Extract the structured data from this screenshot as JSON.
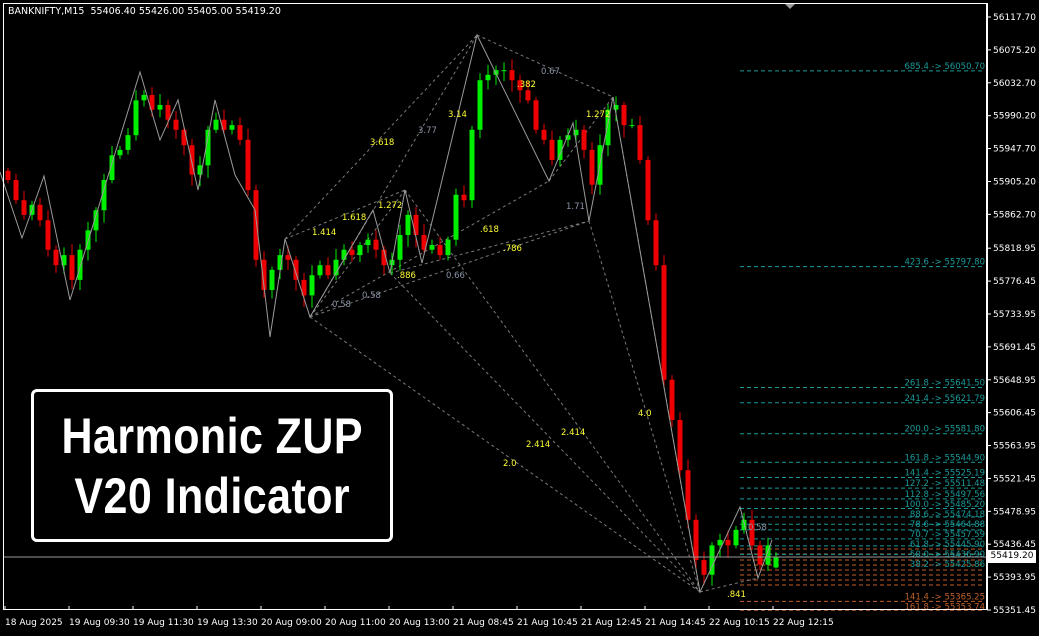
{
  "header": {
    "symbol_info": "BANKNIFTY,M15  55406.40 55426.00 55405.00 55419.20"
  },
  "overlay": {
    "line1": "Harmonic ZUP",
    "line2": "V20 Indicator"
  },
  "colors": {
    "background": "#000000",
    "bull": "#00ee00",
    "bear": "#ee0000",
    "axis": "#ffffff",
    "zigzag": "#9a9a9a",
    "label_yellow": "#ffff33",
    "label_gray": "#8a94a6",
    "level_cyan": "#1b9a9a",
    "level_orange": "#c0602a"
  },
  "price_axis": {
    "labels": [
      "56117.70",
      "56075.20",
      "56032.70",
      "55990.20",
      "55947.70",
      "55905.20",
      "55862.70",
      "55818.95",
      "55776.45",
      "55733.95",
      "55691.45",
      "55648.95",
      "55606.45",
      "55563.95",
      "55521.45",
      "55478.95",
      "55436.45",
      "55393.95",
      "55351.45"
    ],
    "current_price": "55419.20"
  },
  "time_axis": {
    "labels": [
      "18 Aug 2025",
      "19 Aug 09:30",
      "19 Aug 11:30",
      "19 Aug 13:30",
      "20 Aug 09:00",
      "20 Aug 11:00",
      "20 Aug 13:00",
      "21 Aug 08:45",
      "21 Aug 10:45",
      "21 Aug 12:45",
      "21 Aug 14:45",
      "22 Aug 10:15",
      "22 Aug 12:15"
    ]
  },
  "chart_data": {
    "type": "candlestick",
    "symbol": "BANKNIFTY",
    "timeframe": "M15",
    "last_bar": {
      "open": 55406.4,
      "high": 55426.0,
      "low": 55405.0,
      "close": 55419.2
    },
    "ylim": [
      55351.45,
      56117.7
    ],
    "closes": [
      55907,
      55881,
      55862,
      55875,
      55855,
      55817,
      55797,
      55810,
      55778,
      55817,
      55842,
      55868,
      55907,
      55939,
      55946,
      55965,
      56010,
      56017,
      55998,
      56004,
      55985,
      55972,
      55952,
      55914,
      55926,
      55972,
      55985,
      55972,
      55978,
      55959,
      55894,
      55804,
      55765,
      55791,
      55810,
      55804,
      55778,
      55758,
      55784,
      55797,
      55784,
      55804,
      55817,
      55810,
      55823,
      55830,
      55817,
      55797,
      55804,
      55836,
      55862,
      55836,
      55817,
      55823,
      55810,
      55830,
      55888,
      55881,
      55972,
      56036,
      56043,
      56049,
      56049,
      56036,
      56023,
      56010,
      55972,
      55959,
      55933,
      55959,
      55965,
      55972,
      55946,
      55901,
      55952,
      55998,
      56004,
      55978,
      55978,
      55933,
      55855,
      55797,
      55649,
      55597,
      55532,
      55468,
      55416,
      55397,
      55435,
      55442,
      55435,
      55455,
      55468,
      55435,
      55410,
      55435,
      55419.2
    ],
    "fib_labels": [
      {
        "text": "3.618",
        "color": "yellow"
      },
      {
        "text": "3.77",
        "color": "gray"
      },
      {
        "text": "3.14",
        "color": "yellow"
      },
      {
        "text": "1.618",
        "color": "yellow"
      },
      {
        "text": "1.414",
        "color": "yellow"
      },
      {
        "text": "1.272",
        "color": "yellow"
      },
      {
        "text": ".618",
        "color": "yellow"
      },
      {
        "text": ".786",
        "color": "yellow"
      },
      {
        "text": ".886",
        "color": "yellow"
      },
      {
        "text": "0.66",
        "color": "gray"
      },
      {
        "text": "0.58",
        "color": "gray"
      },
      {
        "text": "0.58",
        "color": "gray"
      },
      {
        "text": "0.67",
        "color": "gray"
      },
      {
        "text": ".382",
        "color": "yellow"
      },
      {
        "text": "1.272",
        "color": "yellow"
      },
      {
        "text": "1.71",
        "color": "gray"
      },
      {
        "text": "4.0",
        "color": "yellow"
      },
      {
        "text": "2.414",
        "color": "yellow"
      },
      {
        "text": "2.414",
        "color": "yellow"
      },
      {
        "text": "2.0",
        "color": "yellow"
      },
      {
        "text": ".841",
        "color": "yellow"
      },
      {
        "text": "0.58",
        "color": "gray"
      }
    ],
    "levels": [
      {
        "ratio": "685.4",
        "price": "56050.70",
        "color": "cyan"
      },
      {
        "ratio": "423.6",
        "price": "55797.80",
        "color": "cyan"
      },
      {
        "ratio": "261.8",
        "price": "55641.50",
        "color": "cyan"
      },
      {
        "ratio": "241.4",
        "price": "55621.79",
        "color": "cyan"
      },
      {
        "ratio": "200.0",
        "price": "55581.80",
        "color": "cyan"
      },
      {
        "ratio": "161.8",
        "price": "55544.90",
        "color": "cyan"
      },
      {
        "ratio": "141.4",
        "price": "55525.19",
        "color": "cyan"
      },
      {
        "ratio": "127.2",
        "price": "55511.48",
        "color": "cyan"
      },
      {
        "ratio": "112.8",
        "price": "55497.56",
        "color": "cyan"
      },
      {
        "ratio": "100.0",
        "price": "55485.20",
        "color": "cyan"
      },
      {
        "ratio": "88.6",
        "price": "55474.18",
        "color": "cyan"
      },
      {
        "ratio": "78.6",
        "price": "55464.88",
        "color": "cyan"
      },
      {
        "ratio": "70.7",
        "price": "55457.59",
        "color": "cyan"
      },
      {
        "ratio": "61.8",
        "price": "55445.90",
        "color": "cyan"
      },
      {
        "ratio": "50.0",
        "price": "55436.90",
        "color": "cyan"
      },
      {
        "ratio": "38.2",
        "price": "55425.86",
        "color": "cyan"
      },
      {
        "ratio": "141.4",
        "price": "55365.25",
        "color": "orange"
      },
      {
        "ratio": "161.8",
        "price": "55353.74",
        "color": "orange"
      }
    ]
  }
}
